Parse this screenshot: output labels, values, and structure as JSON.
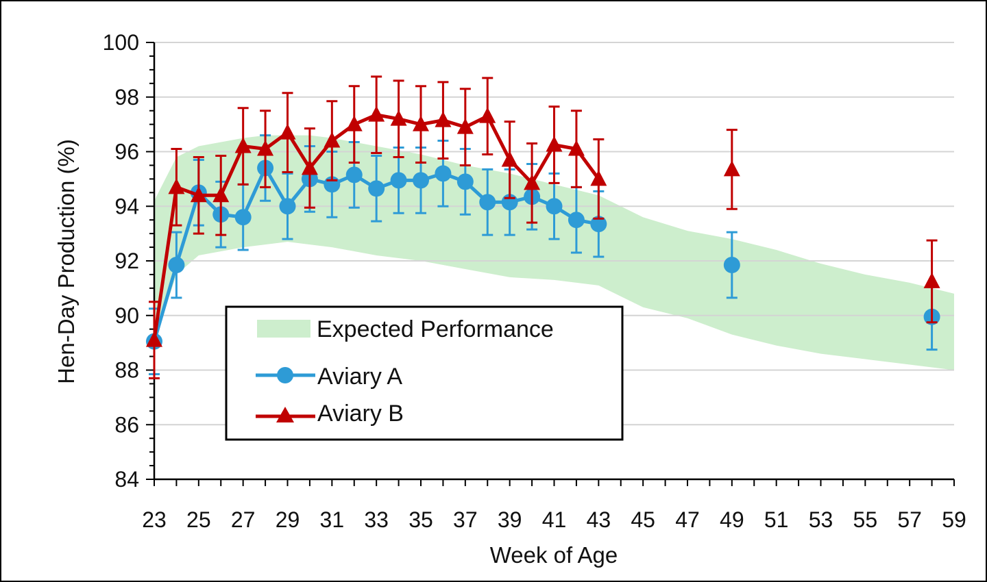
{
  "chart_data": {
    "type": "line",
    "title": "",
    "xlabel": "Week of Age",
    "ylabel": "Hen-Day Production (%)",
    "xlim": [
      23,
      59
    ],
    "ylim": [
      84,
      100
    ],
    "x_ticks": [
      23,
      25,
      27,
      29,
      31,
      33,
      35,
      37,
      39,
      41,
      43,
      45,
      47,
      49,
      51,
      53,
      55,
      57,
      59
    ],
    "y_ticks": [
      84,
      86,
      88,
      90,
      92,
      94,
      96,
      98,
      100
    ],
    "x_tick_labels": [
      "23",
      "25",
      "27",
      "29",
      "31",
      "33",
      "35",
      "37",
      "39",
      "41",
      "43",
      "45",
      "47",
      "49",
      "51",
      "53",
      "55",
      "57",
      "59"
    ],
    "y_tick_labels": [
      "84",
      "86",
      "88",
      "90",
      "92",
      "94",
      "96",
      "98",
      "100"
    ],
    "grid": true,
    "legend_position": "lower-left",
    "expected_band": {
      "name": "Expected Performance",
      "color": "#cdeecd",
      "x": [
        23,
        24,
        25,
        27,
        28,
        29,
        30,
        31,
        33,
        35,
        37,
        39,
        41,
        43,
        45,
        47,
        49,
        51,
        53,
        55,
        57,
        59
      ],
      "upper": [
        94.2,
        95.8,
        96.2,
        96.5,
        96.6,
        96.6,
        96.6,
        96.5,
        96.2,
        95.9,
        95.5,
        95.2,
        94.8,
        94.4,
        93.6,
        93.1,
        92.8,
        92.4,
        91.9,
        91.5,
        91.2,
        90.8
      ],
      "lower": [
        89.0,
        91.5,
        92.2,
        92.5,
        92.6,
        92.7,
        92.6,
        92.5,
        92.2,
        92.0,
        91.7,
        91.4,
        91.3,
        91.1,
        90.3,
        89.9,
        89.3,
        88.9,
        88.6,
        88.4,
        88.2,
        88.0
      ]
    },
    "series": [
      {
        "name": "Aviary A",
        "color": "#2e9bd6",
        "marker": "circle",
        "x": [
          23,
          24,
          25,
          26,
          27,
          28,
          29,
          30,
          31,
          32,
          33,
          34,
          35,
          36,
          37,
          38,
          39,
          40,
          41,
          42,
          43,
          49,
          58
        ],
        "values": [
          89.05,
          91.85,
          94.5,
          93.7,
          93.6,
          95.4,
          94.0,
          95.0,
          94.8,
          95.15,
          94.65,
          94.95,
          94.95,
          95.2,
          94.9,
          94.15,
          94.15,
          94.35,
          94.0,
          93.5,
          93.35,
          91.85,
          89.95
        ],
        "error": [
          1.2,
          1.2,
          1.2,
          1.2,
          1.2,
          1.2,
          1.2,
          1.2,
          1.2,
          1.2,
          1.2,
          1.2,
          1.2,
          1.2,
          1.2,
          1.2,
          1.2,
          1.2,
          1.2,
          1.2,
          1.2,
          1.2,
          1.2
        ],
        "connected_until": 43
      },
      {
        "name": "Aviary B",
        "color": "#c00000",
        "marker": "triangle",
        "x": [
          23,
          24,
          25,
          26,
          27,
          28,
          29,
          30,
          31,
          32,
          33,
          34,
          35,
          36,
          37,
          38,
          39,
          40,
          41,
          42,
          43,
          49,
          58
        ],
        "values": [
          89.1,
          94.7,
          94.4,
          94.4,
          96.2,
          96.1,
          96.7,
          95.4,
          96.4,
          97.0,
          97.35,
          97.2,
          97.0,
          97.15,
          96.9,
          97.3,
          95.7,
          94.85,
          96.25,
          96.1,
          95.0,
          95.35,
          91.25
        ],
        "error": [
          1.4,
          1.4,
          1.4,
          1.45,
          1.4,
          1.4,
          1.45,
          1.45,
          1.45,
          1.4,
          1.4,
          1.4,
          1.4,
          1.4,
          1.4,
          1.4,
          1.4,
          1.45,
          1.4,
          1.4,
          1.45,
          1.45,
          1.5
        ],
        "connected_until": 43
      }
    ]
  }
}
